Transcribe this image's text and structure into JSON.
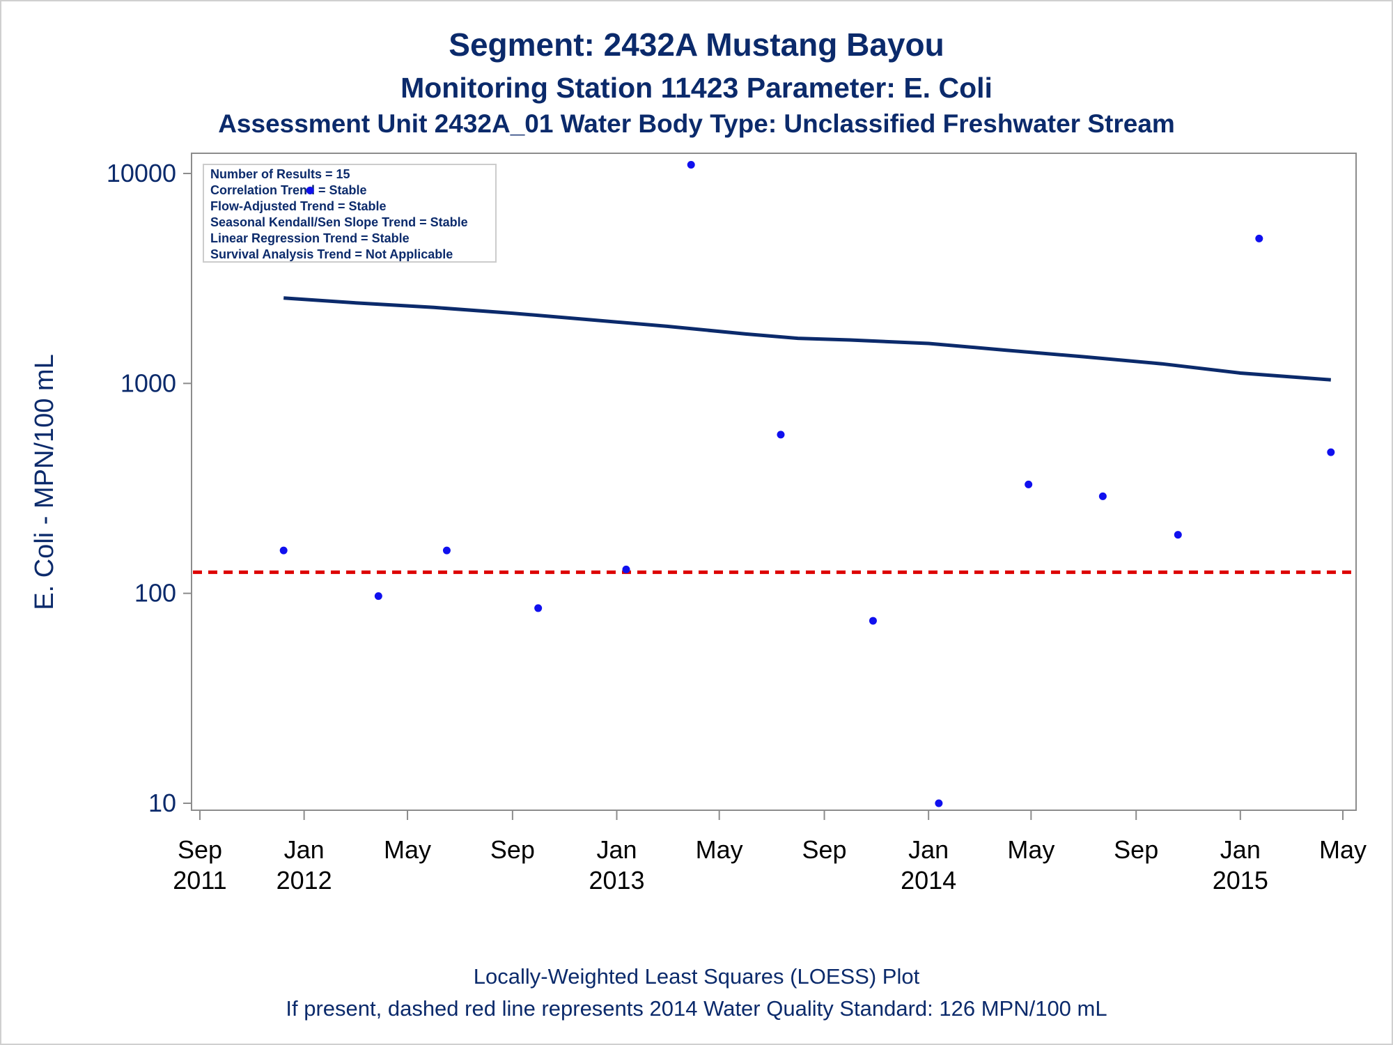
{
  "titles": {
    "line1": "Segment: 2432A  Mustang Bayou",
    "line2": "Monitoring Station 11423 Parameter: E. Coli",
    "line3": "Assessment Unit 2432A_01   Water Body Type: Unclassified Freshwater Stream"
  },
  "stats_box": [
    "Number of Results = 15",
    "Correlation Trend = Stable",
    "Flow-Adjusted Trend = Stable",
    "Seasonal Kendall/Sen Slope Trend = Stable",
    "Linear Regression Trend = Stable",
    "Survival Analysis Trend = Not Applicable"
  ],
  "footnotes": {
    "line1": "Locally-Weighted Least Squares (LOESS) Plot",
    "line2": "If present, dashed red line represents 2014 Water Quality Standard: 126 MPN/100 mL"
  },
  "colors": {
    "points": "#1010ee",
    "loess": "#0b2a6b",
    "standard": "#dd0000",
    "axis": "#8c8c8c",
    "text": "#0b2a6b"
  },
  "chart_data": {
    "type": "scatter",
    "ylabel": "E. Coli - MPN/100 mL",
    "y_scale": "log",
    "ylim": [
      10,
      10000
    ],
    "y_ticks": [
      "10",
      "100",
      "1000",
      "10000"
    ],
    "xlim": [
      "2011-09-01",
      "2015-05-01"
    ],
    "x_ticks": [
      {
        "date": "2011-09-01",
        "month": "Sep",
        "year": "2011"
      },
      {
        "date": "2012-01-01",
        "month": "Jan",
        "year": "2012"
      },
      {
        "date": "2012-05-01",
        "month": "May",
        "year": ""
      },
      {
        "date": "2012-09-01",
        "month": "Sep",
        "year": ""
      },
      {
        "date": "2013-01-01",
        "month": "Jan",
        "year": "2013"
      },
      {
        "date": "2013-05-01",
        "month": "May",
        "year": ""
      },
      {
        "date": "2013-09-01",
        "month": "Sep",
        "year": ""
      },
      {
        "date": "2014-01-01",
        "month": "Jan",
        "year": "2014"
      },
      {
        "date": "2014-05-01",
        "month": "May",
        "year": ""
      },
      {
        "date": "2014-09-01",
        "month": "Sep",
        "year": ""
      },
      {
        "date": "2015-01-01",
        "month": "Jan",
        "year": "2015"
      },
      {
        "date": "2015-05-01",
        "month": "May",
        "year": ""
      }
    ],
    "points": [
      {
        "date": "2011-12-08",
        "value": 160
      },
      {
        "date": "2012-01-08",
        "value": 8300
      },
      {
        "date": "2012-03-28",
        "value": 97
      },
      {
        "date": "2012-06-16",
        "value": 160
      },
      {
        "date": "2012-10-01",
        "value": 85
      },
      {
        "date": "2013-01-12",
        "value": 130
      },
      {
        "date": "2013-03-29",
        "value": 11000
      },
      {
        "date": "2013-07-12",
        "value": 570
      },
      {
        "date": "2013-10-28",
        "value": 74
      },
      {
        "date": "2014-01-13",
        "value": 10
      },
      {
        "date": "2014-04-28",
        "value": 330
      },
      {
        "date": "2014-07-24",
        "value": 290
      },
      {
        "date": "2014-10-20",
        "value": 190
      },
      {
        "date": "2015-01-23",
        "value": 4900
      },
      {
        "date": "2015-04-17",
        "value": 470
      }
    ],
    "loess": [
      {
        "date": "2011-12-08",
        "value": 2550
      },
      {
        "date": "2012-03-01",
        "value": 2420
      },
      {
        "date": "2012-06-01",
        "value": 2300
      },
      {
        "date": "2012-09-01",
        "value": 2160
      },
      {
        "date": "2012-12-01",
        "value": 2010
      },
      {
        "date": "2013-03-01",
        "value": 1870
      },
      {
        "date": "2013-06-01",
        "value": 1720
      },
      {
        "date": "2013-08-01",
        "value": 1640
      },
      {
        "date": "2013-10-01",
        "value": 1610
      },
      {
        "date": "2014-01-01",
        "value": 1550
      },
      {
        "date": "2014-04-01",
        "value": 1440
      },
      {
        "date": "2014-07-01",
        "value": 1340
      },
      {
        "date": "2014-10-01",
        "value": 1240
      },
      {
        "date": "2015-01-01",
        "value": 1120
      },
      {
        "date": "2015-04-17",
        "value": 1040
      }
    ],
    "standard_line": 126,
    "grid": false,
    "legend": "top-left"
  }
}
